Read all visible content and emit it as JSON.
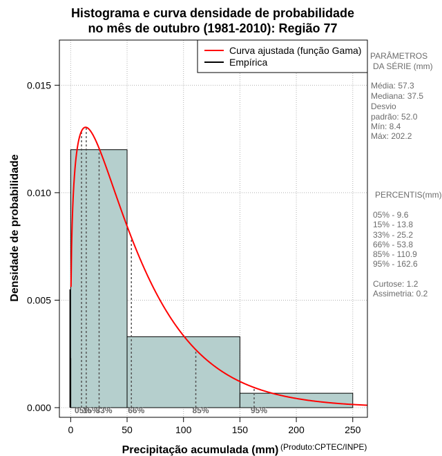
{
  "chart_data": {
    "type": "histogram",
    "title_line1": "Histograma e curva densidade de probabilidade",
    "title_line2": "no mês de outubro (1981-2010): Região 77",
    "xlabel": "Precipitação acumulada (mm)",
    "ylabel": "Densidade de probabilidade",
    "credit": "(Produto:CPTEC/INPE)",
    "xlim": [
      -10,
      263
    ],
    "ylim": [
      -0.00045,
      0.0171
    ],
    "x_ticks": [
      0,
      50,
      100,
      150,
      200,
      250
    ],
    "x_tick_labels": [
      "0",
      "50",
      "100",
      "150",
      "200",
      "250"
    ],
    "y_ticks": [
      0.0,
      0.005,
      0.01,
      0.015
    ],
    "y_tick_labels": [
      "0.000",
      "0.005",
      "0.010",
      "0.015"
    ],
    "grid_x": [
      0,
      50,
      100,
      150,
      200,
      250
    ],
    "grid_y": [
      0.0,
      0.005,
      0.01,
      0.015
    ],
    "bins": [
      {
        "start": 0,
        "end": 50,
        "density": 0.012
      },
      {
        "start": 50,
        "end": 150,
        "density": 0.0033
      },
      {
        "start": 150,
        "end": 250,
        "density": 0.00067
      }
    ],
    "bar_color": "#b5cfcd",
    "series": [
      {
        "name": "Curva ajustada (função Gama)",
        "color": "#ff0000",
        "shape": 1.3,
        "scale": 44.1
      },
      {
        "name": "Empírica",
        "color": "#000000"
      }
    ],
    "percentiles": [
      {
        "label": "05%",
        "value": 9.6
      },
      {
        "label": "15%",
        "value": 13.8
      },
      {
        "label": "33%",
        "value": 25.2
      },
      {
        "label": "66%",
        "value": 53.8
      },
      {
        "label": "85%",
        "value": 110.9
      },
      {
        "label": "95%",
        "value": 162.6
      }
    ],
    "legend_position": "top-right"
  },
  "side_panel": {
    "params_title_1": "PARÂMETROS",
    "params_title_2": "DA SÉRIE (mm)",
    "media": "Média:  57.3",
    "mediana": "Mediana:  37.5",
    "desvio": "Desvio",
    "padrao": "padrão:  52.0",
    "min": "Mín:  8.4",
    "max": "Máx:  202.2",
    "percentis_title": "PERCENTIS(mm)",
    "p05": "05% -  9.6",
    "p15": "15% -  13.8",
    "p33": "33% -  25.2",
    "p66": "66% -  53.8",
    "p85": "85% -  110.9",
    "p95": "95% -  162.6",
    "curtose": "Curtose:  1.2",
    "assimetria": "Assimetria:  0.2"
  }
}
